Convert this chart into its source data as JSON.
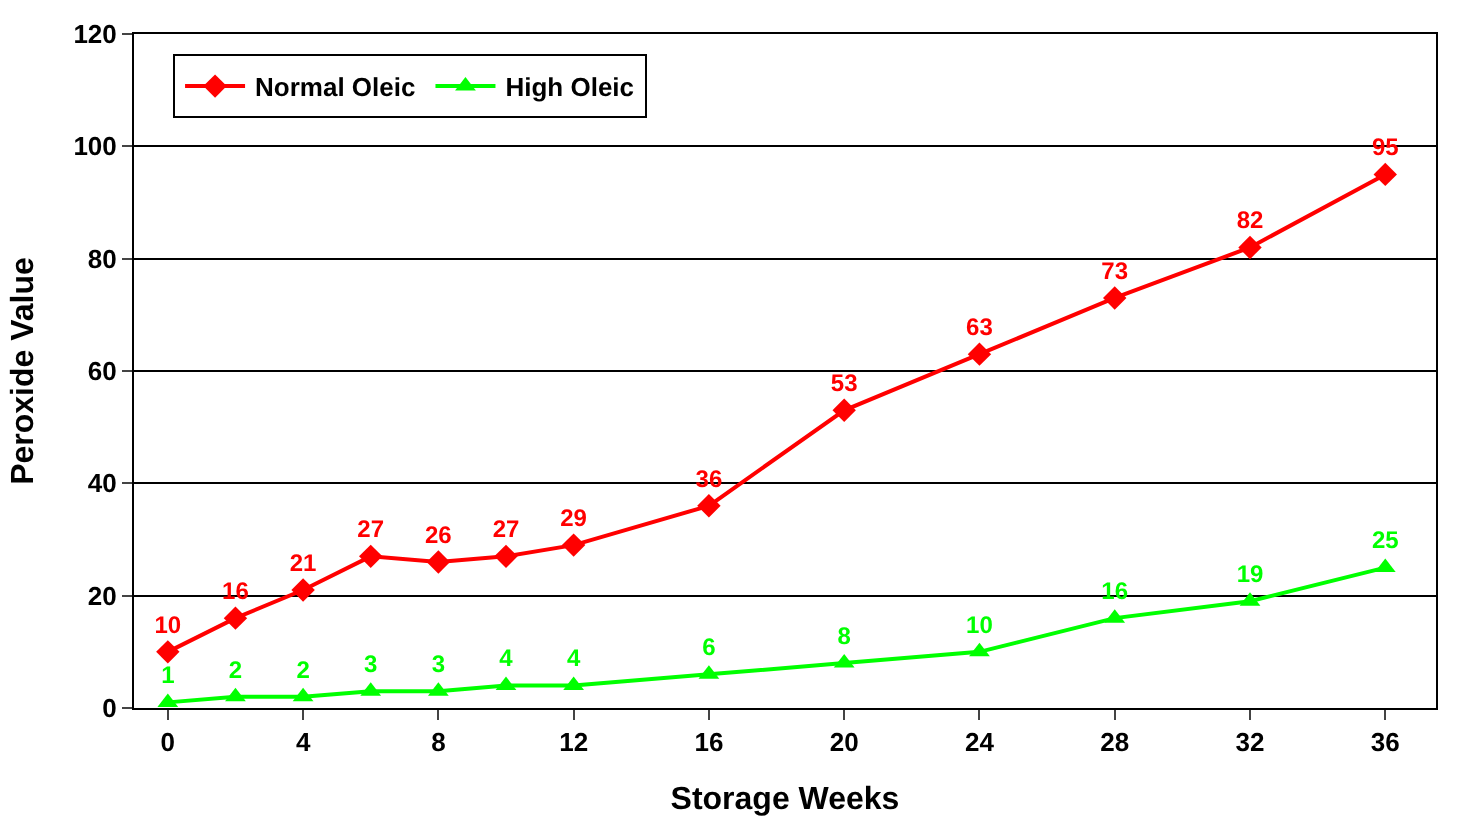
{
  "chart_data": {
    "type": "line",
    "xlabel": "Storage Weeks",
    "ylabel": "Peroxide Value",
    "x": [
      0,
      2,
      4,
      6,
      8,
      10,
      12,
      16,
      20,
      24,
      28,
      32,
      36
    ],
    "series": [
      {
        "name": "Normal Oleic",
        "color": "#ff0000",
        "marker": "diamond",
        "values": [
          10,
          16,
          21,
          27,
          26,
          27,
          29,
          36,
          53,
          63,
          73,
          82,
          95
        ]
      },
      {
        "name": "High Oleic",
        "color": "#00ff00",
        "marker": "triangle",
        "values": [
          1,
          2,
          2,
          3,
          3,
          4,
          4,
          6,
          8,
          10,
          16,
          19,
          25
        ]
      }
    ],
    "xlim": [
      -1,
      37.5
    ],
    "xticks": [
      0,
      4,
      8,
      12,
      16,
      20,
      24,
      28,
      32,
      36
    ],
    "ylim": [
      0,
      120
    ],
    "yticks": [
      0,
      20,
      40,
      60,
      80,
      100,
      120
    ],
    "grid": "y",
    "legend": "top left",
    "data_labels": true,
    "line_style": "solid"
  }
}
